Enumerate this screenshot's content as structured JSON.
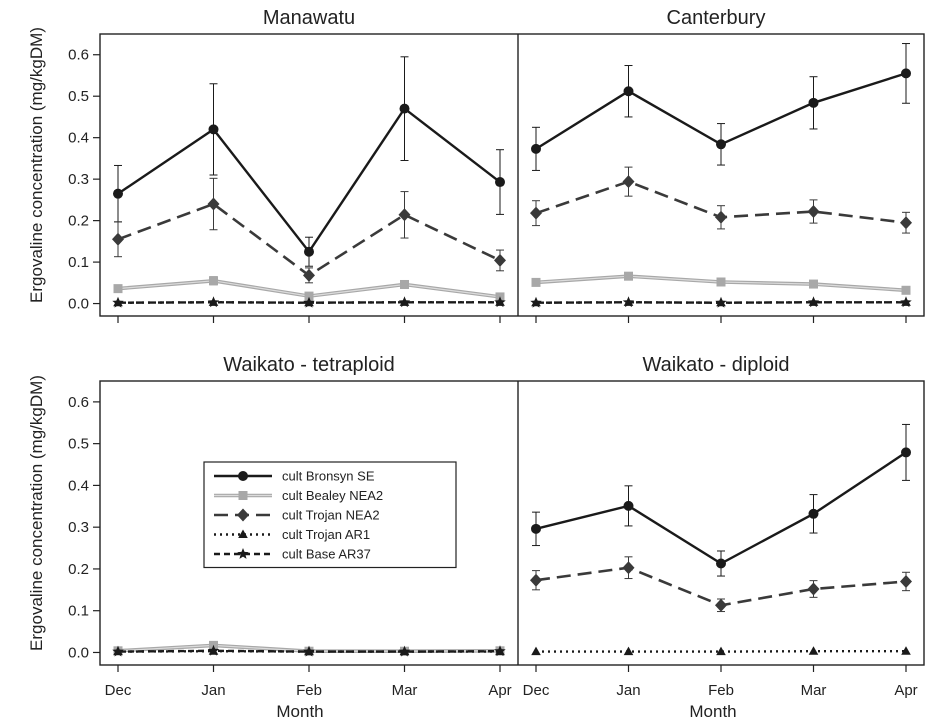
{
  "chart_data": {
    "type": "line",
    "layout": "2x2 facet grid, shared axes",
    "ylabel": "Ergovaline concentration (mg/kgDM)",
    "xlabel": "Month",
    "categories": [
      "Dec",
      "Jan",
      "Feb",
      "Mar",
      "Apr"
    ],
    "ylim": [
      -0.03,
      0.65
    ],
    "yticks": [
      "0.0",
      "0.1",
      "0.2",
      "0.3",
      "0.4",
      "0.5",
      "0.6"
    ],
    "grid": false,
    "legend": {
      "placement": "inside Waikato - tetraploid panel, center-left",
      "entries": [
        {
          "name": "cult Bronsyn SE",
          "color": "#1a1a1a",
          "dash": "solid",
          "marker": "circle"
        },
        {
          "name": "cult Bealey NEA2",
          "color": "#a8a8a8",
          "dash": "solid",
          "marker": "square"
        },
        {
          "name": "cult Trojan NEA2",
          "color": "#3a3a3a",
          "dash": "long-dash",
          "marker": "diamond"
        },
        {
          "name": "cult Trojan AR1",
          "color": "#1a1a1a",
          "dash": "dotted",
          "marker": "triangle"
        },
        {
          "name": "cult Base AR37",
          "color": "#1a1a1a",
          "dash": "short-dash",
          "marker": "star"
        }
      ]
    },
    "panels": [
      {
        "title": "Manawatu",
        "series": [
          {
            "name": "cult Bronsyn SE",
            "values": [
              0.265,
              0.42,
              0.125,
              0.47,
              0.293
            ],
            "errors": [
              0.068,
              0.11,
              0.035,
              0.125,
              0.078
            ]
          },
          {
            "name": "cult Bealey NEA2",
            "values": [
              0.036,
              0.055,
              0.018,
              0.046,
              0.016
            ],
            "errors": [
              0.006,
              0.01,
              0.005,
              0.009,
              0.004
            ]
          },
          {
            "name": "cult Trojan NEA2",
            "values": [
              0.155,
              0.24,
              0.068,
              0.214,
              0.104
            ],
            "errors": [
              0.042,
              0.062,
              0.018,
              0.056,
              0.025
            ]
          },
          {
            "name": "cult Trojan AR1",
            "values": [
              0.002,
              0.003,
              0.002,
              0.003,
              0.003
            ],
            "errors": [
              0,
              0,
              0,
              0,
              0
            ]
          },
          {
            "name": "cult Base AR37",
            "values": [
              0.002,
              0.003,
              0.002,
              0.003,
              0.003
            ],
            "errors": [
              0,
              0,
              0,
              0,
              0
            ]
          }
        ]
      },
      {
        "title": "Canterbury",
        "series": [
          {
            "name": "cult Bronsyn SE",
            "values": [
              0.373,
              0.512,
              0.384,
              0.484,
              0.555
            ],
            "errors": [
              0.052,
              0.062,
              0.05,
              0.063,
              0.072
            ]
          },
          {
            "name": "cult Bealey NEA2",
            "values": [
              0.051,
              0.066,
              0.052,
              0.047,
              0.032
            ],
            "errors": [
              0.005,
              0.006,
              0.005,
              0.005,
              0.004
            ]
          },
          {
            "name": "cult Trojan NEA2",
            "values": [
              0.218,
              0.294,
              0.208,
              0.222,
              0.195
            ],
            "errors": [
              0.03,
              0.035,
              0.028,
              0.028,
              0.025
            ]
          },
          {
            "name": "cult Trojan AR1",
            "values": [
              0.002,
              0.003,
              0.002,
              0.003,
              0.003
            ],
            "errors": [
              0,
              0,
              0,
              0,
              0
            ]
          },
          {
            "name": "cult Base AR37",
            "values": [
              0.002,
              0.003,
              0.002,
              0.003,
              0.003
            ],
            "errors": [
              0,
              0,
              0,
              0,
              0
            ]
          }
        ]
      },
      {
        "title": "Waikato - tetraploid",
        "series": [
          {
            "name": "cult Bronsyn SE",
            "values": [
              null,
              null,
              null,
              null,
              null
            ],
            "errors": [
              0,
              0,
              0,
              0,
              0
            ]
          },
          {
            "name": "cult Bealey NEA2",
            "values": [
              0.004,
              0.017,
              0.003,
              0.003,
              0.004
            ],
            "errors": [
              0.002,
              0.004,
              0.001,
              0.001,
              0.001
            ]
          },
          {
            "name": "cult Trojan NEA2",
            "values": [
              null,
              null,
              null,
              null,
              null
            ],
            "errors": [
              0,
              0,
              0,
              0,
              0
            ]
          },
          {
            "name": "cult Trojan AR1",
            "values": [
              0.002,
              0.003,
              0.002,
              0.002,
              0.002
            ],
            "errors": [
              0,
              0,
              0,
              0,
              0
            ]
          },
          {
            "name": "cult Base AR37",
            "values": [
              0.002,
              0.004,
              0.002,
              0.002,
              0.003
            ],
            "errors": [
              0,
              0,
              0,
              0,
              0
            ]
          }
        ]
      },
      {
        "title": "Waikato - diploid",
        "series": [
          {
            "name": "cult Bronsyn SE",
            "values": [
              0.296,
              0.351,
              0.213,
              0.332,
              0.479
            ],
            "errors": [
              0.04,
              0.048,
              0.03,
              0.046,
              0.067
            ]
          },
          {
            "name": "cult Bealey NEA2",
            "values": [
              null,
              null,
              null,
              null,
              null
            ],
            "errors": [
              0,
              0,
              0,
              0,
              0
            ]
          },
          {
            "name": "cult Trojan NEA2",
            "values": [
              0.173,
              0.203,
              0.113,
              0.152,
              0.17
            ],
            "errors": [
              0.023,
              0.026,
              0.015,
              0.02,
              0.022
            ]
          },
          {
            "name": "cult Trojan AR1",
            "values": [
              0.002,
              0.002,
              0.002,
              0.003,
              0.003
            ],
            "errors": [
              0,
              0,
              0,
              0,
              0
            ]
          },
          {
            "name": "cult Base AR37",
            "values": [
              null,
              null,
              null,
              null,
              null
            ],
            "errors": [
              0,
              0,
              0,
              0,
              0
            ]
          }
        ]
      }
    ]
  }
}
